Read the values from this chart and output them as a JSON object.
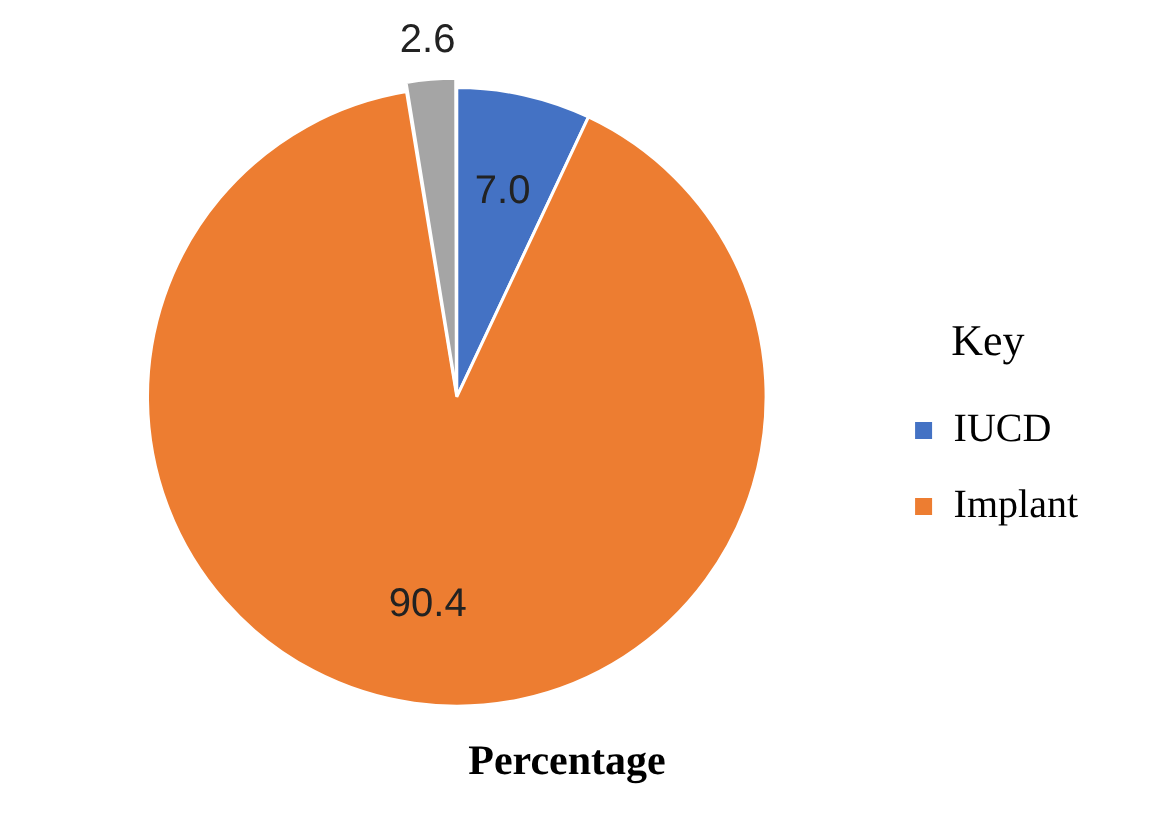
{
  "chart_data": {
    "type": "pie",
    "title": "Percentage",
    "legend_title": "Key",
    "legend": "right",
    "categories": [
      "IUCD",
      "Implant",
      null
    ],
    "values": [
      7.0,
      90.4,
      2.6
    ],
    "colors": [
      "#4472c4",
      "#ed7d31",
      "#a5a5a5"
    ],
    "value_labels": [
      "7.0",
      "90.4",
      "2.6"
    ]
  }
}
